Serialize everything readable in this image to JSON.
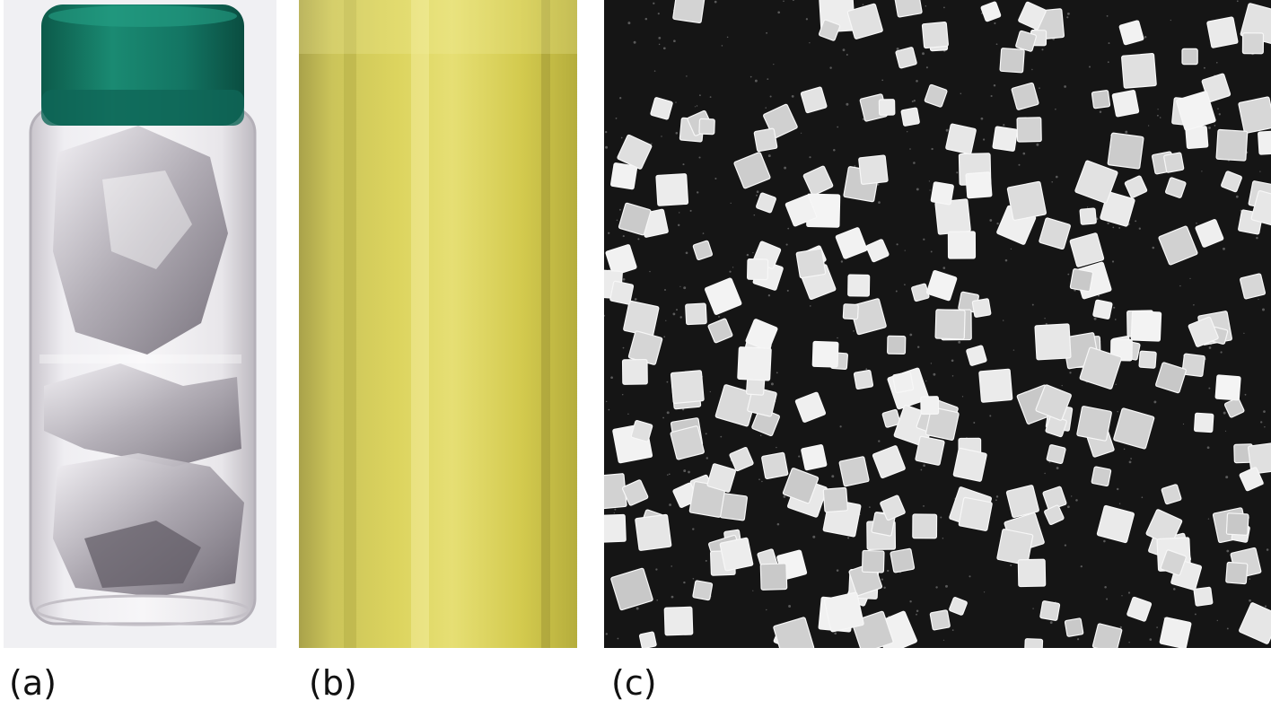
{
  "panels": [
    {
      "label": "(a)",
      "subject": "glass-vial-with-metal-chunks-icon"
    },
    {
      "label": "(b)",
      "subject": "yellow-gas-tube-icon"
    },
    {
      "label": "(c)",
      "subject": "cubic-crystals-icon"
    }
  ],
  "colors": {
    "cap": "#16806b",
    "gas": "#d0c84c",
    "crystal": "#e8e8e8",
    "crystal_bg": "#151515"
  }
}
